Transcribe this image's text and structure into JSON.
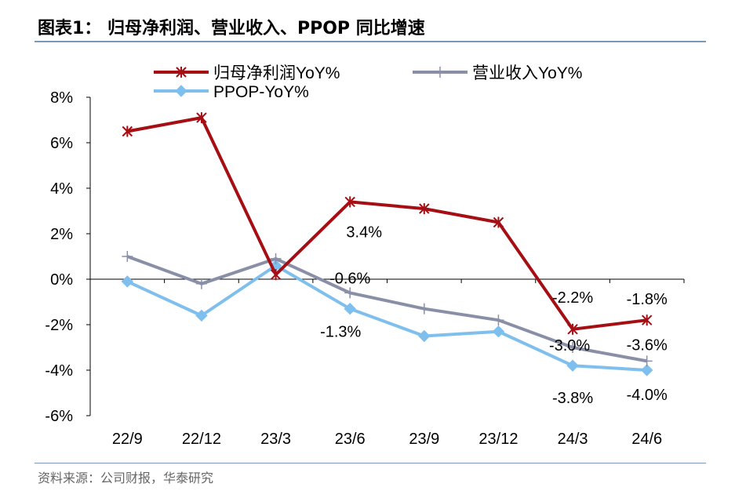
{
  "header": {
    "title": "图表1：  归母净利润、营业收入、PPOP 同比增速"
  },
  "footer": {
    "source": "资料来源：公司财报，华泰研究"
  },
  "chart_data": {
    "type": "line",
    "categories": [
      "22/9",
      "22/12",
      "23/3",
      "23/6",
      "23/9",
      "23/12",
      "24/3",
      "24/6"
    ],
    "yticks": [
      "8%",
      "6%",
      "4%",
      "2%",
      "0%",
      "-2%",
      "-4%",
      "-6%"
    ],
    "ylim": [
      -6,
      8
    ],
    "unit": "%",
    "legend_position": "top",
    "grid": false,
    "series": [
      {
        "name": "归母净利润YoY%",
        "color": "#a50f14",
        "marker": "star",
        "values": [
          6.5,
          7.1,
          0.2,
          3.4,
          3.1,
          2.5,
          -2.2,
          -1.8
        ],
        "labels": [
          "",
          "",
          "",
          "3.4%",
          "",
          "",
          "-2.2%",
          "-1.8%"
        ]
      },
      {
        "name": "营业收入YoY%",
        "color": "#8a8fa8",
        "marker": "plus",
        "values": [
          1.0,
          -0.2,
          0.9,
          -0.6,
          -1.3,
          -1.8,
          -3.0,
          -3.6
        ],
        "labels": [
          "",
          "",
          "",
          "-0.6%",
          "",
          "",
          "-3.0%",
          "-3.6%"
        ]
      },
      {
        "name": "PPOP-YoY%",
        "color": "#7fbfee",
        "marker": "diamond",
        "values": [
          -0.1,
          -1.6,
          0.6,
          -1.3,
          -2.5,
          -2.3,
          -3.8,
          -4.0
        ],
        "labels": [
          "",
          "",
          "",
          "-1.3%",
          "",
          "",
          "-3.8%",
          "-4.0%"
        ]
      }
    ]
  }
}
